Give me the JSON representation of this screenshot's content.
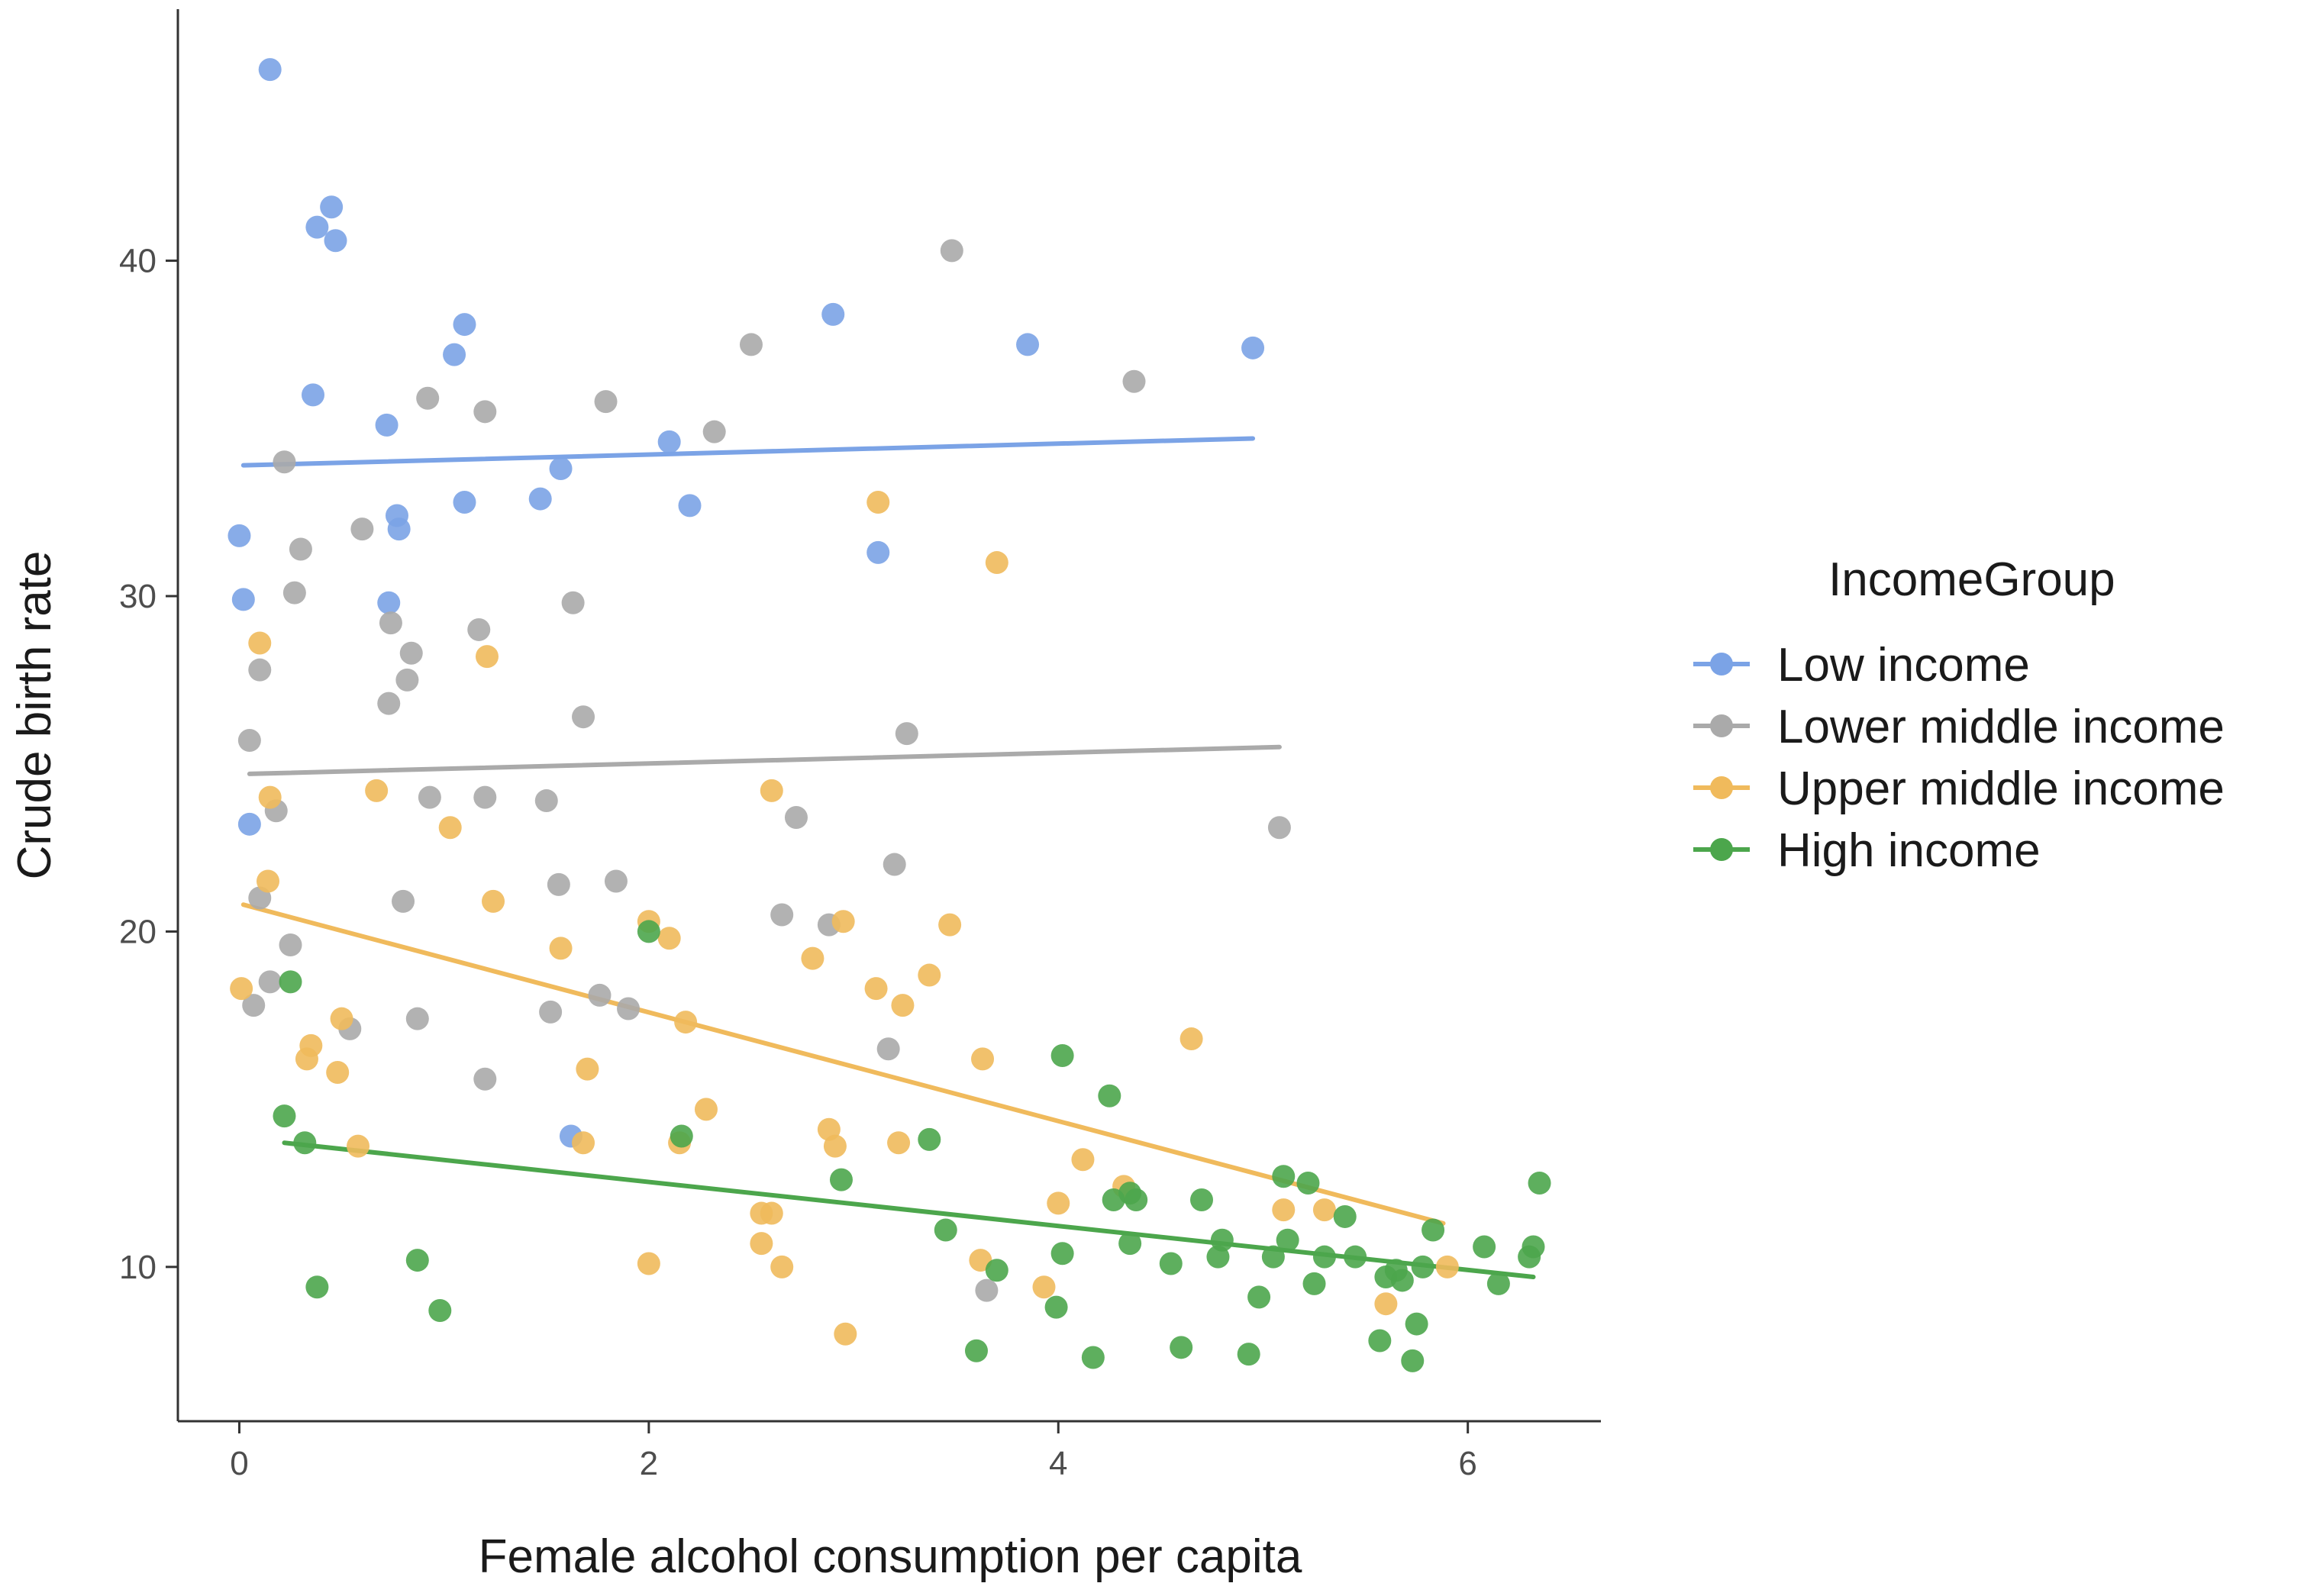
{
  "chart_data": {
    "type": "scatter",
    "title": "",
    "xlabel": "Female alcohol consumption per capita",
    "ylabel": "Crude birth rate",
    "xlim": [
      -0.3,
      6.65
    ],
    "ylim": [
      5.4,
      47.5
    ],
    "xticks": [
      0,
      2,
      4,
      6
    ],
    "yticks": [
      10,
      20,
      30,
      40
    ],
    "grid": false,
    "legend": {
      "title": "IncomeGroup",
      "position": "right"
    },
    "series": [
      {
        "name": "Low income",
        "color": "#7BA3E6",
        "points": [
          [
            0.15,
            45.7
          ],
          [
            0.38,
            41.0
          ],
          [
            0.45,
            41.6
          ],
          [
            0.47,
            40.6
          ],
          [
            0.36,
            36.0
          ],
          [
            1.05,
            37.2
          ],
          [
            1.1,
            38.1
          ],
          [
            0.72,
            35.1
          ],
          [
            2.9,
            38.4
          ],
          [
            3.85,
            37.5
          ],
          [
            4.95,
            37.4
          ],
          [
            2.1,
            34.6
          ],
          [
            1.57,
            33.8
          ],
          [
            1.47,
            32.9
          ],
          [
            1.1,
            32.8
          ],
          [
            2.2,
            32.7
          ],
          [
            0.77,
            32.4
          ],
          [
            0.78,
            32.0
          ],
          [
            0.0,
            31.8
          ],
          [
            3.12,
            31.3
          ],
          [
            0.02,
            29.9
          ],
          [
            0.73,
            29.8
          ],
          [
            0.05,
            23.2
          ],
          [
            1.62,
            13.9
          ]
        ],
        "fit": {
          "x": [
            0.02,
            4.95
          ],
          "y": [
            33.9,
            34.7
          ]
        }
      },
      {
        "name": "Lower middle income",
        "color": "#AAAAAA",
        "points": [
          [
            3.48,
            40.3
          ],
          [
            2.5,
            37.5
          ],
          [
            4.37,
            36.4
          ],
          [
            0.92,
            35.9
          ],
          [
            1.79,
            35.8
          ],
          [
            1.2,
            35.5
          ],
          [
            2.32,
            34.9
          ],
          [
            0.22,
            34.0
          ],
          [
            0.6,
            32.0
          ],
          [
            0.3,
            31.4
          ],
          [
            0.27,
            30.1
          ],
          [
            1.63,
            29.8
          ],
          [
            0.74,
            29.2
          ],
          [
            1.17,
            29.0
          ],
          [
            0.84,
            28.3
          ],
          [
            0.82,
            27.5
          ],
          [
            0.1,
            27.8
          ],
          [
            0.73,
            26.8
          ],
          [
            1.68,
            26.4
          ],
          [
            3.26,
            25.9
          ],
          [
            0.05,
            25.7
          ],
          [
            0.93,
            24.0
          ],
          [
            1.5,
            23.9
          ],
          [
            1.2,
            24.0
          ],
          [
            0.18,
            23.6
          ],
          [
            2.72,
            23.4
          ],
          [
            5.08,
            23.1
          ],
          [
            3.2,
            22.0
          ],
          [
            1.56,
            21.4
          ],
          [
            1.84,
            21.5
          ],
          [
            0.8,
            20.9
          ],
          [
            0.1,
            21.0
          ],
          [
            2.65,
            20.5
          ],
          [
            2.88,
            20.2
          ],
          [
            0.25,
            19.6
          ],
          [
            0.15,
            18.5
          ],
          [
            1.76,
            18.1
          ],
          [
            1.9,
            17.7
          ],
          [
            0.07,
            17.8
          ],
          [
            1.52,
            17.6
          ],
          [
            0.87,
            17.4
          ],
          [
            0.54,
            17.1
          ],
          [
            3.17,
            16.5
          ],
          [
            1.2,
            15.6
          ],
          [
            3.65,
            9.3
          ]
        ],
        "fit": {
          "x": [
            0.05,
            5.08
          ],
          "y": [
            24.7,
            25.5
          ]
        }
      },
      {
        "name": "Upper middle income",
        "color": "#F0BA5C",
        "points": [
          [
            3.12,
            32.8
          ],
          [
            3.7,
            31.0
          ],
          [
            0.1,
            28.6
          ],
          [
            1.21,
            28.2
          ],
          [
            0.67,
            24.2
          ],
          [
            2.6,
            24.2
          ],
          [
            0.15,
            24.0
          ],
          [
            1.03,
            23.1
          ],
          [
            0.14,
            21.5
          ],
          [
            1.24,
            20.9
          ],
          [
            2.0,
            20.3
          ],
          [
            2.95,
            20.3
          ],
          [
            3.47,
            20.2
          ],
          [
            2.1,
            19.8
          ],
          [
            1.57,
            19.5
          ],
          [
            2.8,
            19.2
          ],
          [
            3.37,
            18.7
          ],
          [
            0.01,
            18.3
          ],
          [
            3.11,
            18.3
          ],
          [
            3.24,
            17.8
          ],
          [
            0.5,
            17.4
          ],
          [
            2.18,
            17.3
          ],
          [
            4.65,
            16.8
          ],
          [
            0.35,
            16.6
          ],
          [
            0.33,
            16.2
          ],
          [
            3.63,
            16.2
          ],
          [
            0.48,
            15.8
          ],
          [
            1.7,
            15.9
          ],
          [
            2.28,
            14.7
          ],
          [
            2.88,
            14.1
          ],
          [
            2.15,
            13.7
          ],
          [
            2.91,
            13.6
          ],
          [
            0.58,
            13.6
          ],
          [
            1.68,
            13.7
          ],
          [
            3.22,
            13.7
          ],
          [
            4.12,
            13.2
          ],
          [
            4.32,
            12.4
          ],
          [
            4.0,
            11.9
          ],
          [
            5.1,
            11.7
          ],
          [
            5.3,
            11.7
          ],
          [
            2.55,
            11.6
          ],
          [
            2.6,
            11.6
          ],
          [
            2.55,
            10.7
          ],
          [
            3.62,
            10.2
          ],
          [
            2.65,
            10.0
          ],
          [
            2.0,
            10.1
          ],
          [
            5.9,
            10.0
          ],
          [
            3.93,
            9.4
          ],
          [
            5.6,
            8.9
          ],
          [
            2.96,
            8.0
          ]
        ],
        "fit": {
          "x": [
            0.02,
            5.88
          ],
          "y": [
            20.8,
            11.3
          ]
        }
      },
      {
        "name": "High income",
        "color": "#4CA64C",
        "points": [
          [
            2.0,
            20.0
          ],
          [
            0.25,
            18.5
          ],
          [
            4.02,
            16.3
          ],
          [
            4.25,
            15.1
          ],
          [
            0.22,
            14.5
          ],
          [
            2.16,
            13.9
          ],
          [
            3.37,
            13.8
          ],
          [
            0.32,
            13.7
          ],
          [
            2.94,
            12.6
          ],
          [
            5.1,
            12.7
          ],
          [
            5.22,
            12.5
          ],
          [
            6.35,
            12.5
          ],
          [
            4.27,
            12.0
          ],
          [
            4.35,
            12.2
          ],
          [
            4.38,
            12.0
          ],
          [
            4.7,
            12.0
          ],
          [
            5.4,
            11.5
          ],
          [
            3.45,
            11.1
          ],
          [
            5.83,
            11.1
          ],
          [
            4.8,
            10.8
          ],
          [
            5.12,
            10.8
          ],
          [
            6.08,
            10.6
          ],
          [
            6.32,
            10.6
          ],
          [
            4.02,
            10.4
          ],
          [
            4.35,
            10.7
          ],
          [
            4.55,
            10.1
          ],
          [
            4.78,
            10.3
          ],
          [
            5.05,
            10.3
          ],
          [
            5.3,
            10.3
          ],
          [
            5.45,
            10.3
          ],
          [
            5.65,
            9.9
          ],
          [
            5.78,
            10.0
          ],
          [
            6.3,
            10.3
          ],
          [
            3.7,
            9.9
          ],
          [
            5.6,
            9.7
          ],
          [
            5.68,
            9.6
          ],
          [
            6.15,
            9.5
          ],
          [
            0.38,
            9.4
          ],
          [
            5.25,
            9.5
          ],
          [
            0.87,
            10.2
          ],
          [
            4.98,
            9.1
          ],
          [
            0.98,
            8.7
          ],
          [
            3.99,
            8.8
          ],
          [
            5.75,
            8.3
          ],
          [
            5.57,
            7.8
          ],
          [
            4.6,
            7.6
          ],
          [
            3.6,
            7.5
          ],
          [
            4.93,
            7.4
          ],
          [
            4.17,
            7.3
          ],
          [
            5.73,
            7.2
          ]
        ],
        "fit": {
          "x": [
            0.22,
            6.32
          ],
          "y": [
            13.7,
            9.7
          ]
        }
      }
    ]
  }
}
